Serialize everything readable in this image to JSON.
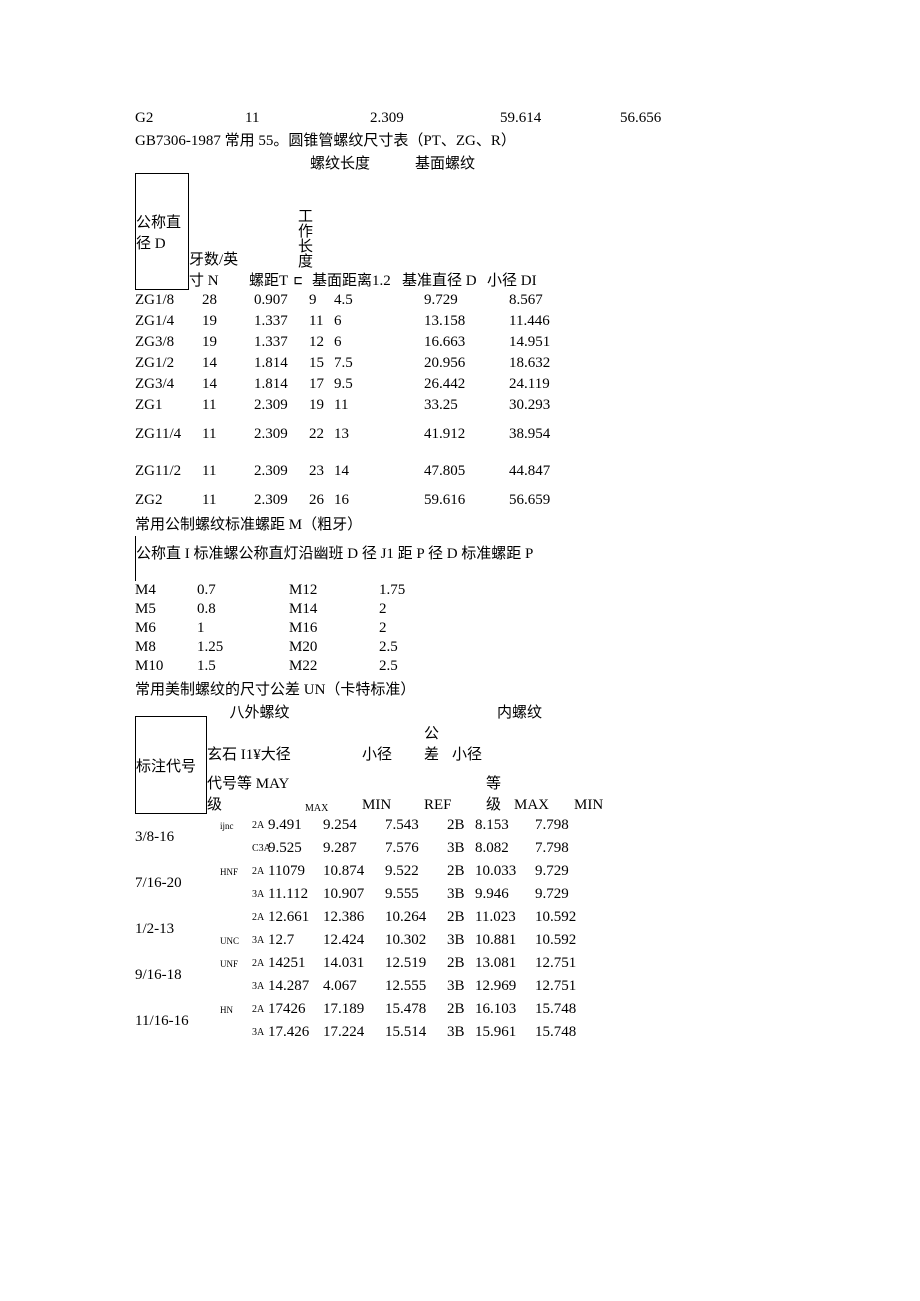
{
  "table1": {
    "g2": [
      "G2",
      "11",
      "2.309",
      "59.614",
      "56.656"
    ]
  },
  "title_zg": "GB7306-1987 常用 55。圆锥管螺纹尺寸表（PT、ZG、R）",
  "table2": {
    "upper": {
      "u1": "螺纹长度",
      "u2": "基面螺纹"
    },
    "labels": [
      "公称直径 D",
      "牙数/英寸 N",
      "螺距T",
      "工作长度",
      "基面距离1.2",
      "基准直径 D",
      "小径 DI"
    ],
    "rows": [
      [
        "ZG1/8",
        "28",
        "0.907",
        "9",
        "4.5",
        "9.729",
        "8.567"
      ],
      [
        "ZG1/4",
        "19",
        "1.337",
        "11",
        "6",
        "13.158",
        "11.446"
      ],
      [
        "ZG3/8",
        "19",
        "1.337",
        "12",
        "6",
        "16.663",
        "14.951"
      ],
      [
        "ZG1/2",
        "14",
        "1.814",
        "15",
        "7.5",
        "20.956",
        "18.632"
      ],
      [
        "ZG3/4",
        "14",
        "1.814",
        "17",
        "9.5",
        "26.442",
        "24.119"
      ],
      [
        "ZG1",
        "11",
        "2.309",
        "19",
        "11",
        "33.25",
        "30.293"
      ],
      [
        "ZG11/4",
        "11",
        "2.309",
        "22",
        "13",
        "41.912",
        "38.954"
      ],
      [
        "ZG11/2",
        "11",
        "2.309",
        "23",
        "14",
        "47.805",
        "44.847"
      ],
      [
        "ZG2",
        "11",
        "2.309",
        "26",
        "16",
        "59.616",
        "56.659"
      ]
    ],
    "tall_idx": [
      6,
      7
    ]
  },
  "title_m": "常用公制螺纹标准螺距 M（粗牙）",
  "table3": {
    "header": "公称直 I 标准螺公称直灯沿幽班 D 径 J1 距 P 径 D 标准螺距 P",
    "rows": [
      [
        "M4",
        "0.7",
        "M12",
        "1.75"
      ],
      [
        "M5",
        "0.8",
        "M14",
        "2"
      ],
      [
        "M6",
        "1",
        "M16",
        "2"
      ],
      [
        "M8",
        "1.25",
        "M20",
        "2.5"
      ],
      [
        "M10",
        "1.5",
        "M22",
        "2.5"
      ]
    ]
  },
  "title_un": "常用美制螺纹的尺寸公差 UN（卡特标准）",
  "table4": {
    "box_label": "标注代号",
    "u_out": "八外螺纹",
    "u_in": "内螺纹",
    "sub1": "玄石 I1¥大径",
    "sub2": "小径",
    "sub3": "公差等级",
    "sub4": "小径",
    "sub5": "代号等 MAY 级",
    "c_max": "MAX",
    "c_min": "MIN",
    "c_ref": "REF",
    "groups": [
      {
        "label": "3/8-16",
        "rmk": "ijnc",
        "rows": [
          [
            "2A",
            "9.491",
            "9.254",
            "7.543",
            "2B",
            "8.153",
            "7.798"
          ],
          [
            "C3A",
            "9.525",
            "9.287",
            "7.576",
            "3B",
            "8.082",
            "7.798"
          ]
        ]
      },
      {
        "label": "7/16-20",
        "rmk": "HNF",
        "rows": [
          [
            "2A",
            "11079",
            "10.874",
            "9.522",
            "2B",
            "10.033",
            "9.729"
          ],
          [
            "3A",
            "11.112",
            "10.907",
            "9.555",
            "3B",
            "9.946",
            "9.729"
          ]
        ]
      },
      {
        "label": "1/2-13",
        "rmk": "UNC",
        "rows": [
          [
            "2A",
            "12.661",
            "12.386",
            "10.264",
            "2B",
            "11.023",
            "10.592"
          ],
          [
            "3A",
            "12.7",
            "12.424",
            "10.302",
            "3B",
            "10.881",
            "10.592"
          ]
        ]
      },
      {
        "label": "9/16-18",
        "rmk": "UNF",
        "rows": [
          [
            "2A",
            "14251",
            "14.031",
            "12.519",
            "2B",
            "13.081",
            "12.751"
          ],
          [
            "3A",
            "14.287",
            "4.067",
            "12.555",
            "3B",
            "12.969",
            "12.751"
          ]
        ]
      },
      {
        "label": "11/16-16",
        "rmk": "HN",
        "rows": [
          [
            "2A",
            "17426",
            "17.189",
            "15.478",
            "2B",
            "16.103",
            "15.748"
          ],
          [
            "3A",
            "17.426",
            "17.224",
            "15.514",
            "3B",
            "15.961",
            "15.748"
          ]
        ]
      }
    ]
  }
}
